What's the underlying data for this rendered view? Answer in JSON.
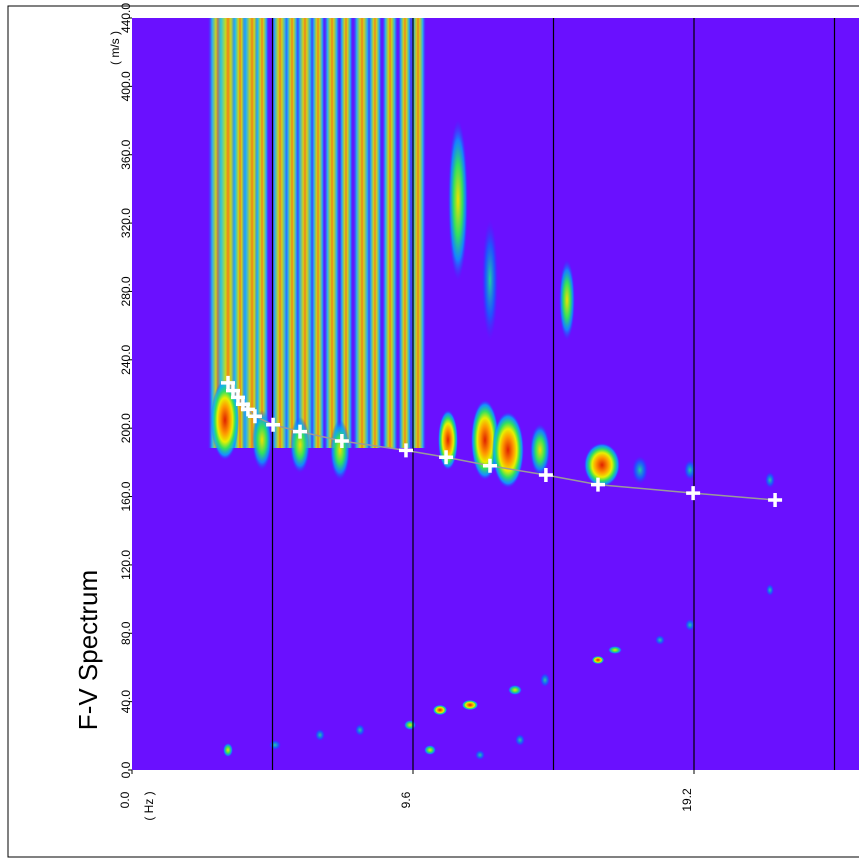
{
  "chart_data": {
    "type": "scatter",
    "title": "F-V Spectrum",
    "x_label": "( Hz )",
    "y_label": "( m/s )",
    "xlim": [
      0,
      24.8
    ],
    "ylim": [
      0,
      440
    ],
    "xticks": [
      {
        "value": 0,
        "label": "0.0"
      },
      {
        "value": 9.6,
        "label": "9.6"
      },
      {
        "value": 19.2,
        "label": "19.2"
      }
    ],
    "xgrid": [
      4.8,
      9.6,
      14.4,
      19.2,
      24.0
    ],
    "yticks": [
      {
        "value": 0,
        "label": "0.0"
      },
      {
        "value": 40,
        "label": "40.0"
      },
      {
        "value": 80,
        "label": "80.0"
      },
      {
        "value": 120,
        "label": "120.0"
      },
      {
        "value": 160,
        "label": "160.0"
      },
      {
        "value": 200,
        "label": "200.0"
      },
      {
        "value": 240,
        "label": "240.0"
      },
      {
        "value": 280,
        "label": "280.0"
      },
      {
        "value": 320,
        "label": "320.0"
      },
      {
        "value": 360,
        "label": "360.0"
      },
      {
        "value": 400,
        "label": "400.0"
      },
      {
        "value": 440,
        "label": "440.0"
      }
    ],
    "background_color": "#6a10ff",
    "series": [
      {
        "color": "#ffffff",
        "line_color": "#9a9a9a",
        "x": [
          3.28,
          3.45,
          3.62,
          3.79,
          3.96,
          4.2,
          4.82,
          5.74,
          7.17,
          9.36,
          10.73,
          12.23,
          14.14,
          15.92,
          19.17,
          21.97
        ],
        "values": [
          226.5,
          222,
          218,
          214,
          211,
          207,
          202,
          198,
          192.5,
          187,
          183,
          178,
          172.6,
          167,
          162,
          158
        ]
      }
    ]
  }
}
